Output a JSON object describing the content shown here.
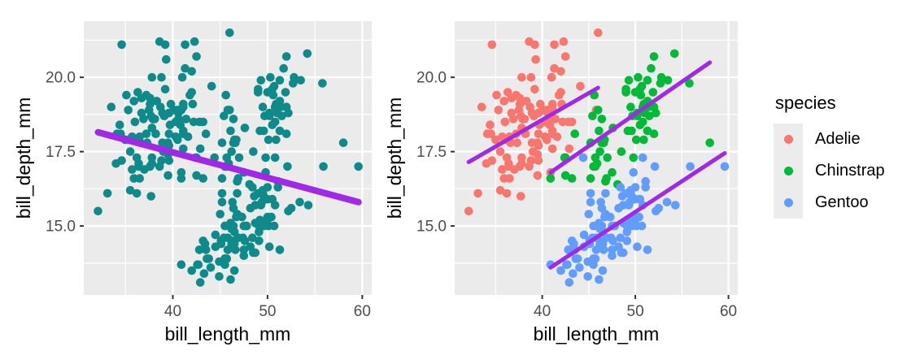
{
  "chart_data": {
    "type": "scatter",
    "xlabel": "bill_length_mm",
    "ylabel": "bill_depth_mm",
    "x_ticks": {
      "values": [
        40,
        50,
        60
      ],
      "labels": [
        "40",
        "50",
        "60"
      ]
    },
    "y_ticks": {
      "values": [
        15,
        17.5,
        20
      ],
      "labels": [
        "15.0",
        "17.5",
        "20.0"
      ]
    },
    "xlim": [
      30.6,
      61.0
    ],
    "ylim": [
      12.68,
      21.89
    ],
    "grid": {
      "panel_background": "#EBEBEB",
      "major_color": "#FFFFFF",
      "minor_color": "#FFFFFF"
    },
    "trend_color": "#A128E6",
    "panels": [
      {
        "id": "left",
        "color_mode": "single",
        "point_color": "#0E8A8A",
        "trend_width": 8,
        "trend": {
          "x": [
            32.1,
            59.6
          ],
          "y": [
            18.15,
            15.8
          ]
        }
      },
      {
        "id": "right",
        "color_mode": "by_species",
        "trend_width": 5
      }
    ],
    "species": [
      {
        "name": "Adelie",
        "color": "#F8766D",
        "trend": {
          "x": [
            32.1,
            46.0
          ],
          "y": [
            17.15,
            19.65
          ]
        },
        "points": [
          [
            39.1,
            18.7
          ],
          [
            39.5,
            17.4
          ],
          [
            40.3,
            18.0
          ],
          [
            36.7,
            19.3
          ],
          [
            39.3,
            20.6
          ],
          [
            38.9,
            17.8
          ],
          [
            39.2,
            19.6
          ],
          [
            34.1,
            18.1
          ],
          [
            42.0,
            20.2
          ],
          [
            37.8,
            17.1
          ],
          [
            37.8,
            17.3
          ],
          [
            41.1,
            17.6
          ],
          [
            38.6,
            21.2
          ],
          [
            34.6,
            21.1
          ],
          [
            36.6,
            17.8
          ],
          [
            38.7,
            19.0
          ],
          [
            42.5,
            20.7
          ],
          [
            34.4,
            18.4
          ],
          [
            46.0,
            21.5
          ],
          [
            37.8,
            18.3
          ],
          [
            37.7,
            18.7
          ],
          [
            35.9,
            19.2
          ],
          [
            38.2,
            18.1
          ],
          [
            38.8,
            17.2
          ],
          [
            35.3,
            18.9
          ],
          [
            40.6,
            18.6
          ],
          [
            40.5,
            17.9
          ],
          [
            37.9,
            18.6
          ],
          [
            40.5,
            18.9
          ],
          [
            39.5,
            16.7
          ],
          [
            37.2,
            18.1
          ],
          [
            39.5,
            17.8
          ],
          [
            40.9,
            18.9
          ],
          [
            36.4,
            17.0
          ],
          [
            39.2,
            21.1
          ],
          [
            38.8,
            20.0
          ],
          [
            42.2,
            18.5
          ],
          [
            37.6,
            19.3
          ],
          [
            39.8,
            19.1
          ],
          [
            36.5,
            18.0
          ],
          [
            40.8,
            18.4
          ],
          [
            36.0,
            18.5
          ],
          [
            44.1,
            19.7
          ],
          [
            37.0,
            16.9
          ],
          [
            39.6,
            18.8
          ],
          [
            41.1,
            19.0
          ],
          [
            37.5,
            18.9
          ],
          [
            36.0,
            17.9
          ],
          [
            42.3,
            21.2
          ],
          [
            39.6,
            17.7
          ],
          [
            40.1,
            18.9
          ],
          [
            35.0,
            17.9
          ],
          [
            42.0,
            19.5
          ],
          [
            34.5,
            18.1
          ],
          [
            41.4,
            18.6
          ],
          [
            39.0,
            17.5
          ],
          [
            40.6,
            18.8
          ],
          [
            36.5,
            16.6
          ],
          [
            37.6,
            19.1
          ],
          [
            35.7,
            16.9
          ],
          [
            41.3,
            21.1
          ],
          [
            37.6,
            17.0
          ],
          [
            41.1,
            18.2
          ],
          [
            36.4,
            17.1
          ],
          [
            41.6,
            18.0
          ],
          [
            35.5,
            16.2
          ],
          [
            41.1,
            19.1
          ],
          [
            35.9,
            16.6
          ],
          [
            41.8,
            19.4
          ],
          [
            33.5,
            19.0
          ],
          [
            39.7,
            18.4
          ],
          [
            39.6,
            17.2
          ],
          [
            45.8,
            18.9
          ],
          [
            35.5,
            17.5
          ],
          [
            42.8,
            18.5
          ],
          [
            40.9,
            16.8
          ],
          [
            37.2,
            19.4
          ],
          [
            36.2,
            16.1
          ],
          [
            42.1,
            19.1
          ],
          [
            34.6,
            17.2
          ],
          [
            42.9,
            17.6
          ],
          [
            36.7,
            18.8
          ],
          [
            35.1,
            19.4
          ],
          [
            37.3,
            17.8
          ],
          [
            36.3,
            19.5
          ],
          [
            41.3,
            20.3
          ],
          [
            36.9,
            18.6
          ],
          [
            38.3,
            19.2
          ],
          [
            38.9,
            18.8
          ],
          [
            35.7,
            18.0
          ],
          [
            41.1,
            18.1
          ],
          [
            34.0,
            17.1
          ],
          [
            39.6,
            18.1
          ],
          [
            36.2,
            17.3
          ],
          [
            40.8,
            18.9
          ],
          [
            38.1,
            18.6
          ],
          [
            40.3,
            18.5
          ],
          [
            33.1,
            16.1
          ],
          [
            43.2,
            18.5
          ],
          [
            35.0,
            17.9
          ],
          [
            41.0,
            20.0
          ],
          [
            37.7,
            16.0
          ],
          [
            37.8,
            20.0
          ],
          [
            37.9,
            18.6
          ],
          [
            38.6,
            17.0
          ],
          [
            32.1,
            15.5
          ]
        ]
      },
      {
        "name": "Chinstrap",
        "color": "#00BA38",
        "trend": {
          "x": [
            40.9,
            58.0
          ],
          "y": [
            16.8,
            20.5
          ]
        },
        "points": [
          [
            46.5,
            17.9
          ],
          [
            50.0,
            19.5
          ],
          [
            51.3,
            19.2
          ],
          [
            45.4,
            18.7
          ],
          [
            52.7,
            19.8
          ],
          [
            45.2,
            17.8
          ],
          [
            46.1,
            18.2
          ],
          [
            51.3,
            18.2
          ],
          [
            46.0,
            18.9
          ],
          [
            51.3,
            19.9
          ],
          [
            46.6,
            17.8
          ],
          [
            51.7,
            20.3
          ],
          [
            47.0,
            17.3
          ],
          [
            52.0,
            18.1
          ],
          [
            45.9,
            17.1
          ],
          [
            50.5,
            19.6
          ],
          [
            50.3,
            20.0
          ],
          [
            58.0,
            17.8
          ],
          [
            46.4,
            18.6
          ],
          [
            49.2,
            18.2
          ],
          [
            42.4,
            17.3
          ],
          [
            48.5,
            17.5
          ],
          [
            43.2,
            16.6
          ],
          [
            50.6,
            19.4
          ],
          [
            46.7,
            17.9
          ],
          [
            52.0,
            19.0
          ],
          [
            50.5,
            18.4
          ],
          [
            49.5,
            19.0
          ],
          [
            46.4,
            17.8
          ],
          [
            52.8,
            20.0
          ],
          [
            40.9,
            16.6
          ],
          [
            54.2,
            20.8
          ],
          [
            42.5,
            16.7
          ],
          [
            51.0,
            18.8
          ],
          [
            49.7,
            18.7
          ],
          [
            47.5,
            16.8
          ],
          [
            47.6,
            18.3
          ],
          [
            52.0,
            20.7
          ],
          [
            46.9,
            16.6
          ],
          [
            53.5,
            19.9
          ],
          [
            49.0,
            19.5
          ],
          [
            46.2,
            17.5
          ],
          [
            50.9,
            19.1
          ],
          [
            45.5,
            17.0
          ],
          [
            50.9,
            17.9
          ],
          [
            50.8,
            18.5
          ],
          [
            50.1,
            17.9
          ],
          [
            49.0,
            19.6
          ],
          [
            51.5,
            18.7
          ],
          [
            49.8,
            17.3
          ],
          [
            48.1,
            16.4
          ],
          [
            51.4,
            19.0
          ],
          [
            45.7,
            17.3
          ],
          [
            50.7,
            19.7
          ],
          [
            42.5,
            17.3
          ],
          [
            52.2,
            18.8
          ],
          [
            45.2,
            16.6
          ],
          [
            49.3,
            19.9
          ],
          [
            50.2,
            18.8
          ],
          [
            45.6,
            19.4
          ],
          [
            51.9,
            19.5
          ],
          [
            46.8,
            16.5
          ],
          [
            45.7,
            17.0
          ],
          [
            55.8,
            19.8
          ],
          [
            43.5,
            18.1
          ],
          [
            49.6,
            18.2
          ],
          [
            50.8,
            19.0
          ],
          [
            50.2,
            18.7
          ]
        ]
      },
      {
        "name": "Gentoo",
        "color": "#619CFF",
        "trend": {
          "x": [
            40.9,
            59.6
          ],
          "y": [
            13.6,
            17.45
          ]
        },
        "points": [
          [
            46.1,
            13.2
          ],
          [
            50.0,
            16.3
          ],
          [
            48.7,
            14.1
          ],
          [
            50.0,
            15.2
          ],
          [
            47.6,
            14.5
          ],
          [
            46.5,
            13.5
          ],
          [
            45.4,
            14.6
          ],
          [
            46.7,
            15.3
          ],
          [
            43.3,
            13.4
          ],
          [
            46.8,
            15.4
          ],
          [
            40.9,
            13.7
          ],
          [
            49.0,
            16.1
          ],
          [
            45.5,
            13.7
          ],
          [
            48.4,
            14.6
          ],
          [
            45.8,
            14.6
          ],
          [
            49.3,
            15.7
          ],
          [
            42.0,
            13.5
          ],
          [
            49.2,
            15.2
          ],
          [
            46.2,
            14.5
          ],
          [
            48.7,
            15.1
          ],
          [
            50.2,
            14.3
          ],
          [
            45.1,
            14.5
          ],
          [
            46.5,
            14.5
          ],
          [
            46.3,
            15.8
          ],
          [
            42.9,
            13.1
          ],
          [
            46.1,
            15.1
          ],
          [
            44.5,
            14.3
          ],
          [
            47.8,
            15.0
          ],
          [
            48.2,
            14.3
          ],
          [
            50.0,
            15.3
          ],
          [
            47.3,
            15.3
          ],
          [
            42.8,
            14.2
          ],
          [
            45.1,
            14.5
          ],
          [
            59.6,
            17.0
          ],
          [
            49.1,
            14.8
          ],
          [
            48.4,
            16.3
          ],
          [
            42.6,
            13.7
          ],
          [
            44.4,
            17.3
          ],
          [
            44.0,
            13.6
          ],
          [
            48.7,
            15.7
          ],
          [
            42.7,
            13.7
          ],
          [
            49.6,
            16.0
          ],
          [
            45.3,
            13.8
          ],
          [
            49.6,
            15.0
          ],
          [
            50.5,
            15.9
          ],
          [
            43.6,
            13.9
          ],
          [
            45.5,
            13.9
          ],
          [
            50.5,
            15.9
          ],
          [
            44.9,
            13.3
          ],
          [
            45.2,
            15.8
          ],
          [
            46.6,
            14.2
          ],
          [
            48.5,
            14.1
          ],
          [
            45.1,
            14.4
          ],
          [
            50.1,
            15.0
          ],
          [
            46.5,
            14.4
          ],
          [
            45.0,
            15.4
          ],
          [
            43.8,
            13.9
          ],
          [
            45.5,
            15.0
          ],
          [
            43.2,
            14.5
          ],
          [
            50.4,
            15.3
          ],
          [
            45.3,
            13.8
          ],
          [
            46.2,
            14.9
          ],
          [
            45.7,
            13.9
          ],
          [
            54.3,
            15.7
          ],
          [
            45.8,
            14.2
          ],
          [
            49.8,
            16.8
          ],
          [
            46.2,
            14.4
          ],
          [
            49.5,
            16.2
          ],
          [
            43.5,
            14.2
          ],
          [
            50.7,
            15.0
          ],
          [
            47.7,
            15.0
          ],
          [
            46.4,
            15.6
          ],
          [
            48.2,
            15.6
          ],
          [
            46.5,
            14.8
          ],
          [
            46.4,
            15.0
          ],
          [
            48.6,
            16.0
          ],
          [
            47.5,
            14.2
          ],
          [
            51.1,
            16.3
          ],
          [
            45.2,
            13.8
          ],
          [
            45.2,
            16.1
          ],
          [
            49.1,
            14.5
          ],
          [
            52.5,
            15.6
          ],
          [
            47.4,
            14.6
          ],
          [
            50.0,
            15.9
          ],
          [
            44.9,
            13.8
          ],
          [
            50.8,
            17.3
          ],
          [
            43.4,
            14.4
          ],
          [
            51.3,
            14.2
          ],
          [
            47.5,
            14.0
          ],
          [
            52.1,
            17.0
          ],
          [
            47.5,
            15.0
          ],
          [
            52.2,
            15.5
          ],
          [
            45.5,
            13.9
          ],
          [
            49.5,
            16.1
          ],
          [
            44.5,
            14.7
          ],
          [
            50.8,
            15.7
          ],
          [
            49.4,
            15.8
          ],
          [
            46.9,
            14.6
          ],
          [
            51.1,
            16.5
          ],
          [
            46.8,
            16.1
          ],
          [
            55.9,
            17.0
          ],
          [
            53.4,
            15.8
          ],
          [
            49.1,
            15.0
          ]
        ]
      }
    ],
    "legend": {
      "title": "species",
      "entries": [
        "Adelie",
        "Chinstrap",
        "Gentoo"
      ],
      "key_background": "#ECECEC",
      "position": "right"
    }
  },
  "text_colors": {
    "tick_label": "#4D4D4D",
    "axis_title": "#000000"
  }
}
